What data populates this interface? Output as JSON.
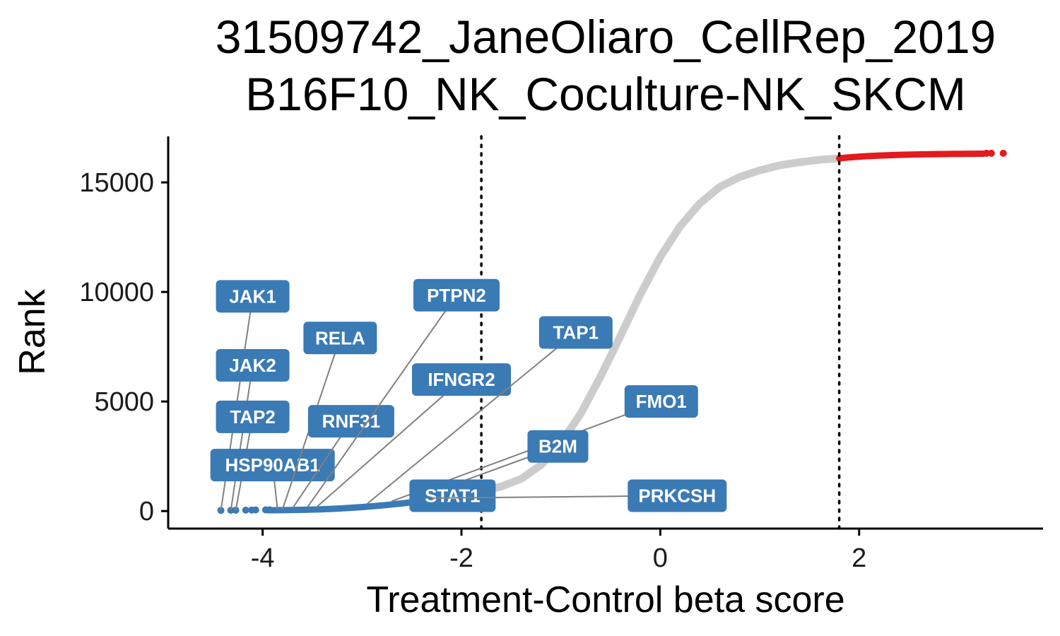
{
  "chart_data": {
    "type": "scatter",
    "title": [
      "31509742_JaneOliaro_CellRep_2019",
      "B16F10_NK_Coculture-NK_SKCM"
    ],
    "xlabel": "Treatment-Control beta score",
    "ylabel": "Rank",
    "xlim": [
      -4.95,
      3.85
    ],
    "ylim": [
      -800,
      17100
    ],
    "x_ticks": [
      -4,
      -2,
      0,
      2
    ],
    "x_tick_labels": [
      "-4",
      "-2",
      "0",
      "2"
    ],
    "y_ticks": [
      0,
      5000,
      10000,
      15000
    ],
    "y_tick_labels": [
      "0",
      "5000",
      "10000",
      "15000"
    ],
    "thresholds": [
      -1.8,
      1.8
    ],
    "threshold_style": "dotted",
    "grid": false,
    "colors": {
      "depleted": "#3a7ab5",
      "enriched": "#e41a1c",
      "neutral": "#cccccc",
      "label_fill": "#3a7ab5",
      "label_text": "#ffffff",
      "leader": "#808080"
    },
    "curve_points": [
      [
        -1.8,
        900
      ],
      [
        -1.6,
        1120
      ],
      [
        -1.4,
        1470
      ],
      [
        -1.2,
        2100
      ],
      [
        -1.0,
        3100
      ],
      [
        -0.8,
        4450
      ],
      [
        -0.6,
        6150
      ],
      [
        -0.4,
        8000
      ],
      [
        -0.2,
        9900
      ],
      [
        0.0,
        11600
      ],
      [
        0.2,
        13000
      ],
      [
        0.4,
        14050
      ],
      [
        0.6,
        14800
      ],
      [
        0.8,
        15250
      ],
      [
        1.0,
        15550
      ],
      [
        1.2,
        15780
      ],
      [
        1.4,
        15920
      ],
      [
        1.6,
        16030
      ],
      [
        1.8,
        16100
      ]
    ],
    "highlighted_genes": [
      {
        "label": "JAK1",
        "x": -4.42,
        "y": 20,
        "label_x": -4.1,
        "label_y": 9800
      },
      {
        "label": "JAK2",
        "x": -4.32,
        "y": 30,
        "label_x": -4.1,
        "label_y": 6650
      },
      {
        "label": "TAP2",
        "x": -4.27,
        "y": 40,
        "label_x": -4.1,
        "label_y": 4300
      },
      {
        "label": "HSP90AB1",
        "x": -3.85,
        "y": 60,
        "label_x": -3.9,
        "label_y": 2100
      },
      {
        "label": "RELA",
        "x": -3.8,
        "y": 80,
        "label_x": -3.22,
        "label_y": 7900
      },
      {
        "label": "RNF31",
        "x": -3.7,
        "y": 120,
        "label_x": -3.11,
        "label_y": 4100
      },
      {
        "label": "PTPN2",
        "x": -3.55,
        "y": 170,
        "label_x": -2.05,
        "label_y": 9850
      },
      {
        "label": "IFNGR2",
        "x": -3.45,
        "y": 210,
        "label_x": -2.0,
        "label_y": 6000
      },
      {
        "label": "TAP1",
        "x": -2.95,
        "y": 330,
        "label_x": -0.85,
        "label_y": 8150
      },
      {
        "label": "FMO1",
        "x": -2.7,
        "y": 450,
        "label_x": 0.01,
        "label_y": 5000
      },
      {
        "label": "B2M",
        "x": -2.5,
        "y": 520,
        "label_x": -1.03,
        "label_y": 2950
      },
      {
        "label": "STAT1",
        "x": -2.0,
        "y": 700,
        "label_x": -2.09,
        "label_y": 700
      },
      {
        "label": "PRKCSH",
        "x": -2.3,
        "y": 590,
        "label_x": 0.17,
        "label_y": 700
      }
    ]
  }
}
